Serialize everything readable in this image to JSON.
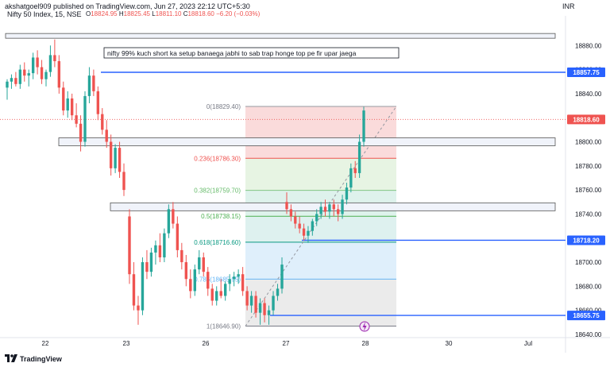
{
  "header": {
    "author": "akshatgoel909 published on TradingView.com, Jun 27, 2023 22:12 UTC+5:30",
    "symbol": "Nifty 50 Index, 15, NSE",
    "ohlc": {
      "o_label": "O",
      "o": "18824.95",
      "h_label": "H",
      "h": "18825.45",
      "l_label": "L",
      "l": "18811.10",
      "c_label": "C",
      "c": "18818.60",
      "change": "−6.20 (−0.03%)"
    },
    "currency": "INR"
  },
  "footer": {
    "brand": "TradingView"
  },
  "colors": {
    "up": "#26a69a",
    "down": "#ef5350",
    "level": "#2962ff",
    "text": "#131722",
    "axis": "#787b86"
  },
  "chart_data": {
    "type": "candlestick",
    "symbol": "Nifty 50 Index",
    "interval": "15",
    "exchange": "NSE",
    "ylim": [
      18638,
      18898
    ],
    "x_tick_labels": [
      "22",
      "23",
      "26",
      "27",
      "28",
      "30",
      "Jul"
    ],
    "y_tick_labels": [
      "18880.00",
      "18860.00",
      "18840.00",
      "18820.00",
      "18800.00",
      "18780.00",
      "18760.00",
      "18740.00",
      "18720.00",
      "18700.00",
      "18680.00",
      "18660.00",
      "18640.00"
    ],
    "candles": [
      {
        "o": 18845,
        "h": 18852,
        "l": 18835,
        "c": 18850
      },
      {
        "o": 18850,
        "h": 18856,
        "l": 18844,
        "c": 18853
      },
      {
        "o": 18853,
        "h": 18858,
        "l": 18846,
        "c": 18848
      },
      {
        "o": 18848,
        "h": 18864,
        "l": 18844,
        "c": 18860
      },
      {
        "o": 18860,
        "h": 18866,
        "l": 18850,
        "c": 18855
      },
      {
        "o": 18855,
        "h": 18860,
        "l": 18846,
        "c": 18857
      },
      {
        "o": 18857,
        "h": 18874,
        "l": 18852,
        "c": 18870
      },
      {
        "o": 18870,
        "h": 18876,
        "l": 18856,
        "c": 18862
      },
      {
        "o": 18862,
        "h": 18868,
        "l": 18848,
        "c": 18852
      },
      {
        "o": 18852,
        "h": 18860,
        "l": 18846,
        "c": 18858
      },
      {
        "o": 18858,
        "h": 18880,
        "l": 18854,
        "c": 18872
      },
      {
        "o": 18872,
        "h": 18885,
        "l": 18862,
        "c": 18867
      },
      {
        "o": 18867,
        "h": 18872,
        "l": 18840,
        "c": 18845
      },
      {
        "o": 18845,
        "h": 18850,
        "l": 18822,
        "c": 18826
      },
      {
        "o": 18826,
        "h": 18842,
        "l": 18820,
        "c": 18836
      },
      {
        "o": 18836,
        "h": 18840,
        "l": 18818,
        "c": 18822
      },
      {
        "o": 18822,
        "h": 18832,
        "l": 18812,
        "c": 18815
      },
      {
        "o": 18815,
        "h": 18822,
        "l": 18792,
        "c": 18800
      },
      {
        "o": 18800,
        "h": 18842,
        "l": 18796,
        "c": 18838
      },
      {
        "o": 18838,
        "h": 18862,
        "l": 18832,
        "c": 18855
      },
      {
        "o": 18855,
        "h": 18860,
        "l": 18838,
        "c": 18842
      },
      {
        "o": 18842,
        "h": 18846,
        "l": 18818,
        "c": 18823
      },
      {
        "o": 18823,
        "h": 18828,
        "l": 18806,
        "c": 18810
      },
      {
        "o": 18810,
        "h": 18818,
        "l": 18795,
        "c": 18800
      },
      {
        "o": 18800,
        "h": 18806,
        "l": 18772,
        "c": 18778
      },
      {
        "o": 18778,
        "h": 18798,
        "l": 18774,
        "c": 18795
      },
      {
        "o": 18795,
        "h": 18800,
        "l": 18770,
        "c": 18775
      },
      {
        "o": 18775,
        "h": 18782,
        "l": 18755,
        "c": 18760
      },
      {
        "o": 18738,
        "h": 18744,
        "l": 18682,
        "c": 18690
      },
      {
        "o": 18690,
        "h": 18700,
        "l": 18660,
        "c": 18664
      },
      {
        "o": 18664,
        "h": 18672,
        "l": 18648,
        "c": 18660
      },
      {
        "o": 18660,
        "h": 18704,
        "l": 18656,
        "c": 18700
      },
      {
        "o": 18700,
        "h": 18710,
        "l": 18686,
        "c": 18692
      },
      {
        "o": 18692,
        "h": 18712,
        "l": 18688,
        "c": 18708
      },
      {
        "o": 18708,
        "h": 18718,
        "l": 18698,
        "c": 18714
      },
      {
        "o": 18714,
        "h": 18724,
        "l": 18700,
        "c": 18704
      },
      {
        "o": 18704,
        "h": 18728,
        "l": 18700,
        "c": 18724
      },
      {
        "o": 18724,
        "h": 18748,
        "l": 18720,
        "c": 18744
      },
      {
        "o": 18744,
        "h": 18750,
        "l": 18728,
        "c": 18732
      },
      {
        "o": 18732,
        "h": 18738,
        "l": 18704,
        "c": 18710
      },
      {
        "o": 18710,
        "h": 18716,
        "l": 18694,
        "c": 18700
      },
      {
        "o": 18700,
        "h": 18706,
        "l": 18680,
        "c": 18686
      },
      {
        "o": 18686,
        "h": 18694,
        "l": 18670,
        "c": 18676
      },
      {
        "o": 18676,
        "h": 18698,
        "l": 18672,
        "c": 18694
      },
      {
        "o": 18694,
        "h": 18710,
        "l": 18690,
        "c": 18704
      },
      {
        "o": 18704,
        "h": 18708,
        "l": 18688,
        "c": 18692
      },
      {
        "o": 18692,
        "h": 18696,
        "l": 18672,
        "c": 18678
      },
      {
        "o": 18678,
        "h": 18682,
        "l": 18664,
        "c": 18668
      },
      {
        "o": 18668,
        "h": 18680,
        "l": 18664,
        "c": 18676
      },
      {
        "o": 18676,
        "h": 18686,
        "l": 18670,
        "c": 18672
      },
      {
        "o": 18672,
        "h": 18684,
        "l": 18668,
        "c": 18682
      },
      {
        "o": 18682,
        "h": 18690,
        "l": 18676,
        "c": 18686
      },
      {
        "o": 18686,
        "h": 18692,
        "l": 18680,
        "c": 18688
      },
      {
        "o": 18688,
        "h": 18694,
        "l": 18682,
        "c": 18690
      },
      {
        "o": 18690,
        "h": 18696,
        "l": 18672,
        "c": 18676
      },
      {
        "o": 18676,
        "h": 18680,
        "l": 18660,
        "c": 18664
      },
      {
        "o": 18664,
        "h": 18676,
        "l": 18658,
        "c": 18672
      },
      {
        "o": 18672,
        "h": 18676,
        "l": 18654,
        "c": 18658
      },
      {
        "o": 18658,
        "h": 18670,
        "l": 18648,
        "c": 18666
      },
      {
        "o": 18666,
        "h": 18670,
        "l": 18650,
        "c": 18656
      },
      {
        "o": 18656,
        "h": 18664,
        "l": 18648,
        "c": 18660
      },
      {
        "o": 18660,
        "h": 18676,
        "l": 18656,
        "c": 18672
      },
      {
        "o": 18672,
        "h": 18682,
        "l": 18668,
        "c": 18678
      },
      {
        "o": 18678,
        "h": 18704,
        "l": 18674,
        "c": 18698
      },
      {
        "o": 18750,
        "h": 18758,
        "l": 18740,
        "c": 18744
      },
      {
        "o": 18744,
        "h": 18748,
        "l": 18734,
        "c": 18738
      },
      {
        "o": 18738,
        "h": 18742,
        "l": 18728,
        "c": 18732
      },
      {
        "o": 18732,
        "h": 18738,
        "l": 18724,
        "c": 18728
      },
      {
        "o": 18728,
        "h": 18732,
        "l": 18718,
        "c": 18722
      },
      {
        "o": 18722,
        "h": 18730,
        "l": 18716,
        "c": 18726
      },
      {
        "o": 18726,
        "h": 18736,
        "l": 18722,
        "c": 18734
      },
      {
        "o": 18734,
        "h": 18744,
        "l": 18730,
        "c": 18740
      },
      {
        "o": 18740,
        "h": 18750,
        "l": 18736,
        "c": 18746
      },
      {
        "o": 18746,
        "h": 18752,
        "l": 18738,
        "c": 18742
      },
      {
        "o": 18742,
        "h": 18750,
        "l": 18736,
        "c": 18748
      },
      {
        "o": 18748,
        "h": 18752,
        "l": 18738,
        "c": 18744
      },
      {
        "o": 18744,
        "h": 18748,
        "l": 18734,
        "c": 18740
      },
      {
        "o": 18740,
        "h": 18756,
        "l": 18736,
        "c": 18752
      },
      {
        "o": 18752,
        "h": 18766,
        "l": 18748,
        "c": 18762
      },
      {
        "o": 18762,
        "h": 18782,
        "l": 18758,
        "c": 18778
      },
      {
        "o": 18778,
        "h": 18784,
        "l": 18770,
        "c": 18774
      },
      {
        "o": 18774,
        "h": 18806,
        "l": 18770,
        "c": 18800
      },
      {
        "o": 18800,
        "h": 18829,
        "l": 18796,
        "c": 18826
      },
      {
        "o": 18825,
        "h": 18825.45,
        "l": 18811.1,
        "c": 18818.6
      }
    ],
    "levels": [
      {
        "label": "18857.75",
        "value": 18857.75
      },
      {
        "label": "18718.20",
        "value": 18718.2
      },
      {
        "label": "18655.75",
        "value": 18655.75
      }
    ],
    "last_price": {
      "label": "18818.60",
      "value": 18818.6
    },
    "zones": [
      {
        "value": 18888
      },
      {
        "value": 18800
      },
      {
        "value": 18746
      }
    ],
    "fib": [
      {
        "ratio": 0,
        "label": "0(18829.40)",
        "value": 18829.4
      },
      {
        "ratio": 0.236,
        "label": "0.236(18786.30)",
        "value": 18786.3
      },
      {
        "ratio": 0.382,
        "label": "0.382(18759.70)",
        "value": 18759.7
      },
      {
        "ratio": 0.5,
        "label": "0.5(18738.15)",
        "value": 18738.15
      },
      {
        "ratio": 0.618,
        "label": "0.618(18716.60)",
        "value": 18716.6
      },
      {
        "ratio": 0.786,
        "label": "0.786(18685.95)",
        "value": 18685.95
      },
      {
        "ratio": 1,
        "label": "1(18646.90)",
        "value": 18646.9
      }
    ],
    "annotation": "nifty 99% kuch short ka setup banaega jabhi to sab trap honge top pe fir upar jaega"
  }
}
